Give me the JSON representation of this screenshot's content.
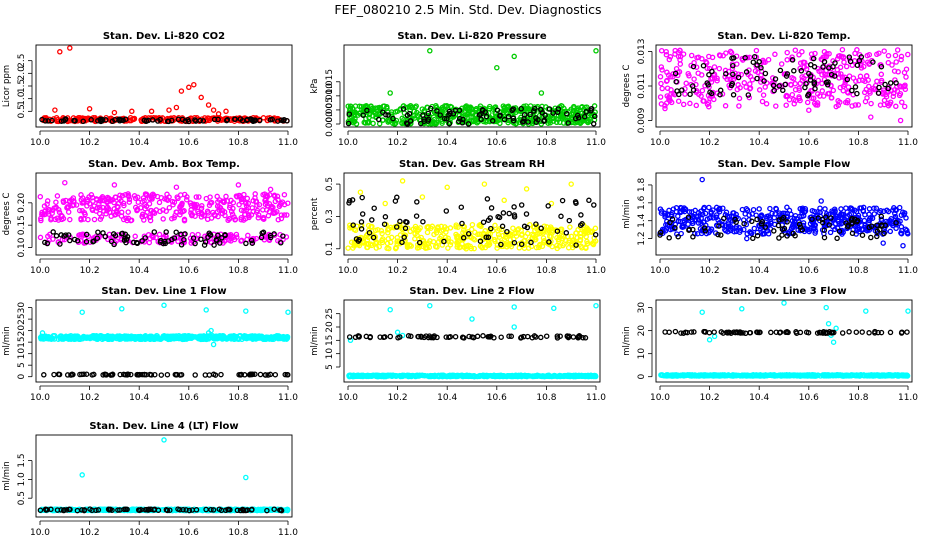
{
  "figure": {
    "title": "FEF_080210  2.5 Min. Std. Dev. Diagnostics"
  },
  "chart_data": [
    {
      "type": "scatter",
      "title": "Stan. Dev. Li-820 CO2",
      "ylabel": "Licor ppm",
      "xlim": [
        10.0,
        11.0
      ],
      "ylim": [
        0.0,
        3.0
      ],
      "x_ticks": [
        "10.0",
        "10.2",
        "10.4",
        "10.6",
        "10.8",
        "11.0"
      ],
      "y_ticks": [
        {
          "value": 0.5,
          "label": "0.5"
        },
        {
          "value": 1.0,
          "label": "1.0"
        },
        {
          "value": 1.5,
          "label": "1.5"
        },
        {
          "value": 2.0,
          "label": "2.0"
        },
        {
          "value": 2.5,
          "label": "2.5"
        }
      ],
      "series": [
        {
          "color": "#ff0000",
          "x_range": [
            10.0,
            11.0
          ],
          "y_band": [
            0.1,
            0.25
          ],
          "n": 240,
          "extra": [
            [
              10.08,
              2.85
            ],
            [
              10.12,
              3.0
            ],
            [
              10.06,
              0.55
            ],
            [
              10.2,
              0.6
            ],
            [
              10.3,
              0.45
            ],
            [
              10.37,
              0.5
            ],
            [
              10.45,
              0.5
            ],
            [
              10.52,
              0.55
            ],
            [
              10.55,
              0.65
            ],
            [
              10.57,
              1.3
            ],
            [
              10.6,
              1.45
            ],
            [
              10.62,
              1.55
            ],
            [
              10.65,
              1.05
            ],
            [
              10.68,
              0.75
            ],
            [
              10.7,
              0.55
            ],
            [
              10.72,
              0.4
            ],
            [
              10.75,
              0.5
            ]
          ]
        },
        {
          "color": "#000000",
          "x_range": [
            10.0,
            11.0
          ],
          "y_band": [
            0.1,
            0.2
          ],
          "n": 70,
          "extra": []
        }
      ]
    },
    {
      "type": "scatter",
      "title": "Stan. Dev. Li-820 Pressure",
      "ylabel": "kPa",
      "xlim": [
        10.0,
        11.0
      ],
      "ylim": [
        0.0,
        0.027
      ],
      "x_ticks": [
        "10.0",
        "10.2",
        "10.4",
        "10.6",
        "10.8",
        "11.0"
      ],
      "y_ticks": [
        {
          "value": 0.0,
          "label": "0.000"
        },
        {
          "value": 0.005,
          "label": "0.005"
        },
        {
          "value": 0.01,
          "label": "0.010"
        },
        {
          "value": 0.015,
          "label": "0.015"
        }
      ],
      "series": [
        {
          "color": "#00cc00",
          "x_range": [
            10.0,
            11.0
          ],
          "y_band": [
            0.0,
            0.0065
          ],
          "n": 520,
          "extra": [
            [
              10.33,
              0.026
            ],
            [
              10.6,
              0.02
            ],
            [
              10.67,
              0.024
            ],
            [
              11.0,
              0.026
            ],
            [
              10.17,
              0.011
            ],
            [
              10.78,
              0.011
            ]
          ]
        },
        {
          "color": "#000000",
          "x_range": [
            10.0,
            11.0
          ],
          "y_band": [
            0.0,
            0.0055
          ],
          "n": 90,
          "extra": []
        }
      ]
    },
    {
      "type": "scatter",
      "title": "Stan. Dev. Li-820 Temp.",
      "ylabel": "degrees C",
      "xlim": [
        10.0,
        11.0
      ],
      "ylim": [
        0.0088,
        0.0132
      ],
      "x_ticks": [
        "10.0",
        "10.2",
        "10.4",
        "10.6",
        "10.8",
        "11.0"
      ],
      "y_ticks": [
        {
          "value": 0.009,
          "label": "0.009"
        },
        {
          "value": 0.011,
          "label": "0.011"
        },
        {
          "value": 0.013,
          "label": "0.013"
        }
      ],
      "series": [
        {
          "color": "#ff00ff",
          "x_range": [
            10.0,
            11.0
          ],
          "y_band": [
            0.0098,
            0.0131
          ],
          "n": 420,
          "extra": [
            [
              10.02,
              0.0097
            ],
            [
              10.06,
              0.0105
            ],
            [
              10.85,
              0.0092
            ],
            [
              10.97,
              0.009
            ],
            [
              10.6,
              0.0096
            ]
          ]
        },
        {
          "color": "#000000",
          "x_range": [
            10.05,
            10.97
          ],
          "y_band": [
            0.0103,
            0.0127
          ],
          "n": 90,
          "extra": []
        }
      ]
    },
    {
      "type": "scatter",
      "title": "Stan. Dev. Amb. Box Temp.",
      "ylabel": "degrees C",
      "xlim": [
        10.0,
        11.0
      ],
      "ylim": [
        0.09,
        0.26
      ],
      "x_ticks": [
        "10.0",
        "10.2",
        "10.4",
        "10.6",
        "10.8",
        "11.0"
      ],
      "y_ticks": [
        {
          "value": 0.1,
          "label": "0.10"
        },
        {
          "value": 0.15,
          "label": "0.15"
        },
        {
          "value": 0.2,
          "label": "0.20"
        }
      ],
      "series": [
        {
          "color": "#ff00ff",
          "x_range": [
            10.0,
            11.0
          ],
          "y_band": [
            0.16,
            0.22
          ],
          "n": 380,
          "extra": [
            [
              10.1,
              0.245
            ],
            [
              10.3,
              0.24
            ],
            [
              10.55,
              0.235
            ],
            [
              10.8,
              0.24
            ],
            [
              10.93,
              0.23
            ]
          ]
        },
        {
          "color": "#ff00ff",
          "x_range": [
            10.0,
            11.0
          ],
          "y_band": [
            0.11,
            0.13
          ],
          "n": 150,
          "extra": []
        },
        {
          "color": "#000000",
          "x_range": [
            10.0,
            11.0
          ],
          "y_band": [
            0.105,
            0.135
          ],
          "n": 80,
          "extra": []
        }
      ]
    },
    {
      "type": "scatter",
      "title": "Stan. Dev. Gas Stream RH",
      "ylabel": "percent",
      "xlim": [
        10.0,
        11.0
      ],
      "ylim": [
        0.08,
        0.55
      ],
      "x_ticks": [
        "10.0",
        "10.2",
        "10.4",
        "10.6",
        "10.8",
        "11.0"
      ],
      "y_ticks": [
        {
          "value": 0.1,
          "label": "0.1"
        },
        {
          "value": 0.3,
          "label": "0.3"
        },
        {
          "value": 0.5,
          "label": "0.5"
        }
      ],
      "series": [
        {
          "color": "#ffff00",
          "x_range": [
            10.0,
            11.0
          ],
          "y_band": [
            0.1,
            0.25
          ],
          "n": 420,
          "extra": [
            [
              10.05,
              0.45
            ],
            [
              10.22,
              0.52
            ],
            [
              10.4,
              0.48
            ],
            [
              10.55,
              0.5
            ],
            [
              10.72,
              0.47
            ],
            [
              10.9,
              0.5
            ],
            [
              10.15,
              0.38
            ],
            [
              10.3,
              0.42
            ],
            [
              10.63,
              0.4
            ],
            [
              10.82,
              0.38
            ]
          ]
        },
        {
          "color": "#000000",
          "x_range": [
            10.0,
            11.0
          ],
          "y_band": [
            0.12,
            0.42
          ],
          "n": 80,
          "extra": []
        }
      ]
    },
    {
      "type": "scatter",
      "title": "Stan. Dev. Sample Flow",
      "ylabel": "ml/min",
      "xlim": [
        10.0,
        11.0
      ],
      "ylim": [
        1.05,
        1.9
      ],
      "x_ticks": [
        "10.0",
        "10.2",
        "10.4",
        "10.6",
        "10.8",
        "11.0"
      ],
      "y_ticks": [
        {
          "value": 1.2,
          "label": "1.2"
        },
        {
          "value": 1.4,
          "label": "1.4"
        },
        {
          "value": 1.6,
          "label": "1.6"
        },
        {
          "value": 1.8,
          "label": "1.8"
        }
      ],
      "series": [
        {
          "color": "#0000ff",
          "x_range": [
            10.0,
            11.0
          ],
          "y_band": [
            1.25,
            1.55
          ],
          "n": 480,
          "extra": [
            [
              10.17,
              1.86
            ],
            [
              10.65,
              1.62
            ],
            [
              10.98,
              1.12
            ],
            [
              10.9,
              1.15
            ],
            [
              10.35,
              1.2
            ]
          ]
        },
        {
          "color": "#000000",
          "x_range": [
            10.0,
            11.0
          ],
          "y_band": [
            1.2,
            1.45
          ],
          "n": 80,
          "extra": []
        }
      ]
    },
    {
      "type": "scatter",
      "title": "Stan. Dev. Line 1 Flow",
      "ylabel": "ml/min",
      "xlim": [
        10.0,
        11.0
      ],
      "ylim": [
        -1,
        32
      ],
      "x_ticks": [
        "10.0",
        "10.2",
        "10.4",
        "10.6",
        "10.8",
        "11.0"
      ],
      "y_ticks": [
        {
          "value": 0,
          "label": "0"
        },
        {
          "value": 5,
          "label": "5"
        },
        {
          "value": 10,
          "label": "10"
        },
        {
          "value": 15,
          "label": "15"
        },
        {
          "value": 20,
          "label": "20"
        },
        {
          "value": 25,
          "label": "25"
        },
        {
          "value": 30,
          "label": "30"
        }
      ],
      "series": [
        {
          "color": "#00ffff",
          "x_range": [
            10.0,
            11.0
          ],
          "y_band": [
            16.2,
            17.8
          ],
          "n": 520,
          "extra": [
            [
              10.17,
              28
            ],
            [
              10.33,
              29.5
            ],
            [
              10.5,
              31
            ],
            [
              10.67,
              29
            ],
            [
              10.83,
              28.5
            ],
            [
              11.0,
              28
            ],
            [
              10.69,
              20
            ],
            [
              10.7,
              14
            ],
            [
              10.68,
              19
            ],
            [
              10.01,
              19
            ]
          ]
        },
        {
          "color": "#000000",
          "x_range": [
            10.0,
            11.0
          ],
          "y_band": [
            0.7,
            1.1
          ],
          "n": 75,
          "extra": []
        }
      ]
    },
    {
      "type": "scatter",
      "title": "Stan. Dev. Line 2 Flow",
      "ylabel": "ml/min",
      "xlim": [
        10.0,
        11.0
      ],
      "ylim": [
        0.5,
        29
      ],
      "x_ticks": [
        "10.0",
        "10.2",
        "10.4",
        "10.6",
        "10.8",
        "11.0"
      ],
      "y_ticks": [
        {
          "value": 5,
          "label": "5"
        },
        {
          "value": 10,
          "label": "10"
        },
        {
          "value": 15,
          "label": "15"
        },
        {
          "value": 20,
          "label": "20"
        },
        {
          "value": 25,
          "label": "25"
        }
      ],
      "series": [
        {
          "color": "#00ffff",
          "x_range": [
            10.0,
            11.0
          ],
          "y_band": [
            1.4,
            1.9
          ],
          "n": 520,
          "extra": [
            [
              10.17,
              26.5
            ],
            [
              10.33,
              28
            ],
            [
              10.5,
              23
            ],
            [
              10.67,
              27.5
            ],
            [
              10.83,
              27
            ],
            [
              11.0,
              28
            ],
            [
              10.67,
              20
            ],
            [
              10.2,
              18
            ],
            [
              10.22,
              16.8
            ],
            [
              10.01,
              15
            ]
          ]
        },
        {
          "color": "#000000",
          "x_range": [
            10.0,
            11.0
          ],
          "y_band": [
            15.9,
            16.7
          ],
          "n": 75,
          "extra": []
        }
      ]
    },
    {
      "type": "scatter",
      "title": "Stan. Dev. Line 3 Flow",
      "ylabel": "ml/min",
      "xlim": [
        10.0,
        11.0
      ],
      "ylim": [
        -1,
        32
      ],
      "x_ticks": [
        "10.0",
        "10.2",
        "10.4",
        "10.6",
        "10.8",
        "11.0"
      ],
      "y_ticks": [
        {
          "value": 0,
          "label": "0"
        },
        {
          "value": 10,
          "label": "10"
        },
        {
          "value": 20,
          "label": "20"
        },
        {
          "value": 30,
          "label": "30"
        }
      ],
      "series": [
        {
          "color": "#00ffff",
          "x_range": [
            10.0,
            11.0
          ],
          "y_band": [
            0.3,
            0.8
          ],
          "n": 520,
          "extra": [
            [
              10.17,
              28
            ],
            [
              10.33,
              29.5
            ],
            [
              10.5,
              32
            ],
            [
              10.67,
              30
            ],
            [
              10.83,
              28.5
            ],
            [
              11.0,
              28.5
            ],
            [
              10.68,
              23
            ],
            [
              10.7,
              15
            ],
            [
              10.69,
              18
            ],
            [
              10.2,
              16
            ],
            [
              10.22,
              17.5
            ],
            [
              10.71,
              21
            ]
          ]
        },
        {
          "color": "#000000",
          "x_range": [
            10.0,
            11.0
          ],
          "y_band": [
            18.8,
            19.6
          ],
          "n": 75,
          "extra": []
        }
      ]
    },
    {
      "type": "scatter",
      "title": "Stan. Dev. Line 4 (LT) Flow",
      "ylabel": "ml/min",
      "xlim": [
        10.0,
        11.0
      ],
      "ylim": [
        0.08,
        2.1
      ],
      "x_ticks": [
        "10.0",
        "10.2",
        "10.4",
        "10.6",
        "10.8",
        "11.0"
      ],
      "y_ticks": [
        {
          "value": 0.5,
          "label": "0.5"
        },
        {
          "value": 1.0,
          "label": "1.0"
        },
        {
          "value": 1.5,
          "label": "1.5"
        }
      ],
      "series": [
        {
          "color": "#00ffff",
          "x_range": [
            10.0,
            11.0
          ],
          "y_band": [
            0.17,
            0.21
          ],
          "n": 480,
          "extra": [
            [
              10.17,
              1.12
            ],
            [
              10.5,
              2.05
            ],
            [
              10.83,
              1.05
            ]
          ]
        },
        {
          "color": "#000000",
          "x_range": [
            10.0,
            11.0
          ],
          "y_band": [
            0.17,
            0.21
          ],
          "n": 75,
          "extra": []
        }
      ]
    }
  ]
}
